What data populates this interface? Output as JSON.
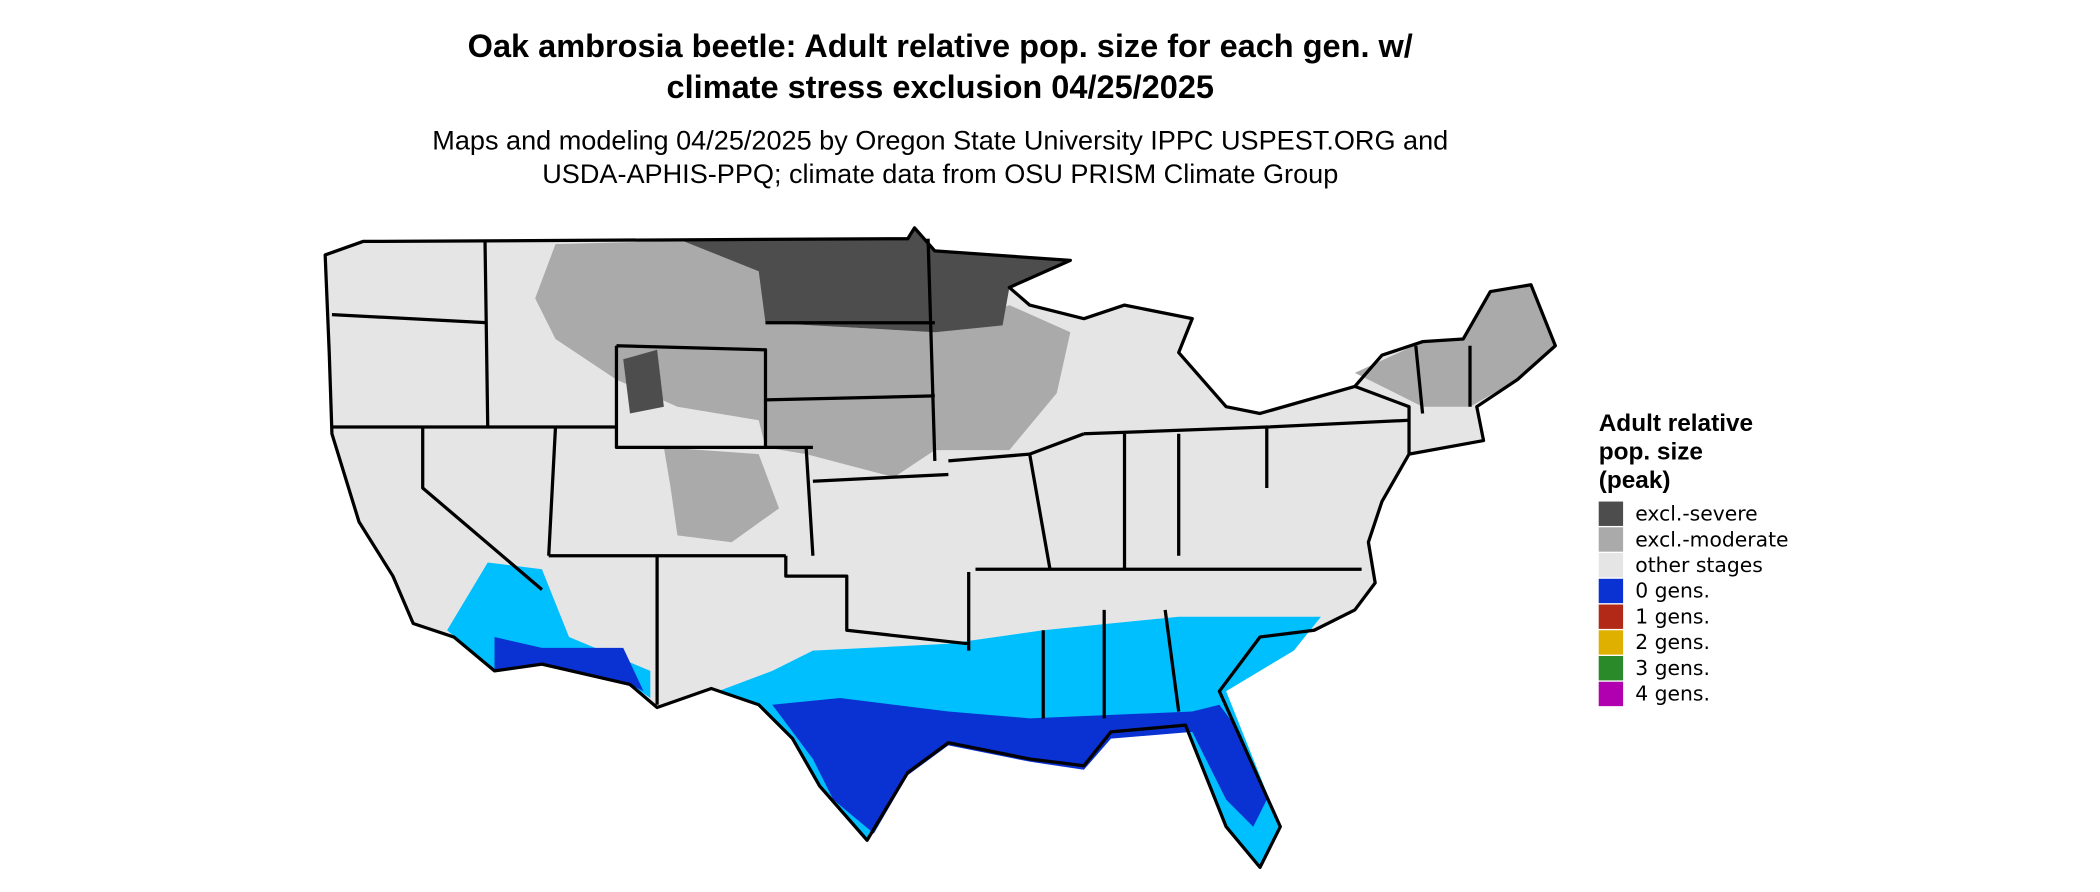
{
  "title": [
    "Oak ambrosia beetle: Adult relative pop. size for each gen. w/",
    "climate stress exclusion 04/25/2025"
  ],
  "subtitle": [
    "Maps and modeling 04/25/2025 by Oregon State University IPPC USPEST.ORG and",
    "USDA-APHIS-PPQ; climate data from OSU PRISM Climate Group"
  ],
  "legend": {
    "title": [
      "Adult relative",
      "pop. size",
      "(peak)"
    ],
    "items": [
      {
        "label": "excl.-severe",
        "color": "#4d4d4d"
      },
      {
        "label": "excl.-moderate",
        "color": "#aaaaaa"
      },
      {
        "label": "other stages",
        "color": "#e5e5e5"
      },
      {
        "label": "0 gens.",
        "color": "#0a32d2"
      },
      {
        "label": "1 gens.",
        "color": "#b22a17"
      },
      {
        "label": "2 gens.",
        "color": "#e0b000"
      },
      {
        "label": "3 gens.",
        "color": "#2a8a2a"
      },
      {
        "label": "4 gens.",
        "color": "#b000b0"
      }
    ]
  }
}
